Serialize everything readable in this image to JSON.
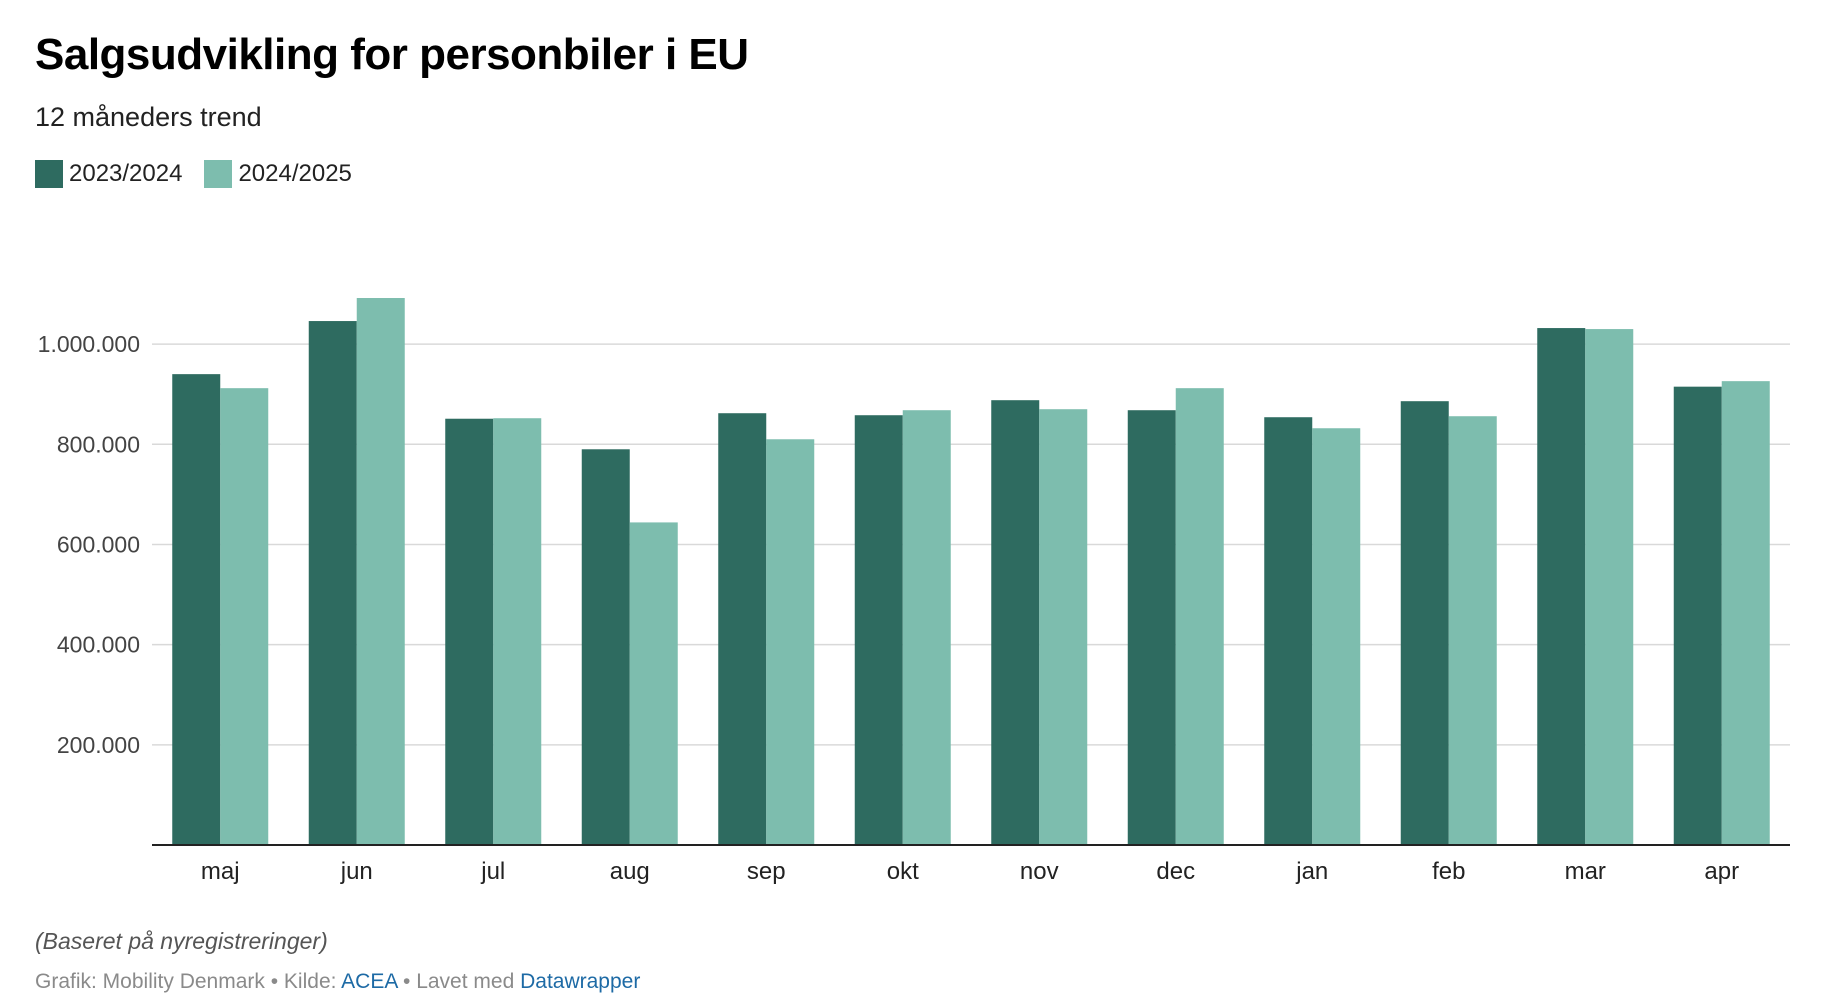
{
  "chart_data": {
    "type": "bar",
    "title": "Salgsudvikling for personbiler i EU",
    "subtitle": "12 måneders trend",
    "categories": [
      "maj",
      "jun",
      "jul",
      "aug",
      "sep",
      "okt",
      "nov",
      "dec",
      "jan",
      "feb",
      "mar",
      "apr"
    ],
    "series": [
      {
        "name": "2023/2024",
        "color": "#2e6b60",
        "values": [
          940000,
          1046000,
          851000,
          790000,
          862000,
          858000,
          888000,
          868000,
          854000,
          886000,
          1032000,
          915000
        ]
      },
      {
        "name": "2024/2025",
        "color": "#7dbdae",
        "values": [
          912000,
          1092000,
          852000,
          644000,
          810000,
          868000,
          870000,
          912000,
          832000,
          856000,
          1030000,
          926000
        ]
      }
    ],
    "ylim": [
      0,
      1100000
    ],
    "yticks": [
      200000,
      400000,
      600000,
      800000,
      1000000
    ],
    "ytick_labels": [
      "200.000",
      "400.000",
      "600.000",
      "800.000",
      "1.000.000"
    ],
    "grid": true,
    "legend": "top-left"
  },
  "notes": "(Baseret på nyregistreringer)",
  "byline": {
    "grafik": "Grafik: Mobility Denmark",
    "sep1": " • ",
    "kilde_label": "Kilde: ",
    "kilde_link": "ACEA",
    "sep2": " • ",
    "lavet_label": "Lavet med ",
    "lavet_link": "Datawrapper"
  }
}
